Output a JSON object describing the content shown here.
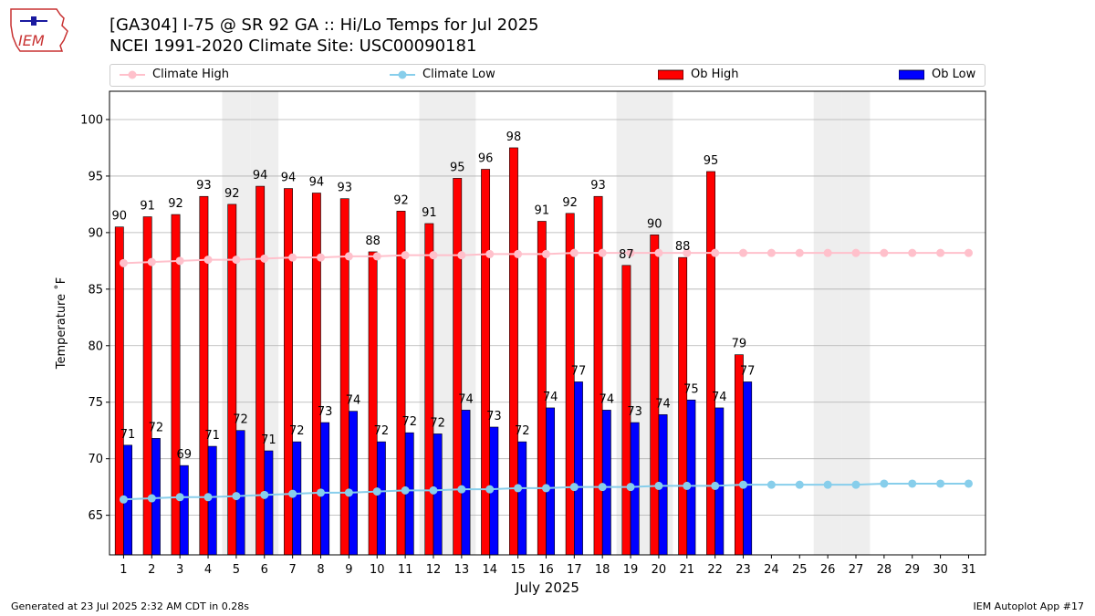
{
  "header": {
    "title_line1": "[GA304] I-75 @ SR 92  GA :: Hi/Lo Temps for Jul 2025",
    "title_line2": "NCEI 1991-2020 Climate Site: USC00090181",
    "logo_text": "IEM"
  },
  "legend": {
    "climate_high": "Climate High",
    "climate_low": "Climate Low",
    "ob_high": "Ob High",
    "ob_low": "Ob Low"
  },
  "footer": {
    "generated": "Generated at 23 Jul 2025 2:32 AM CDT in 0.28s",
    "app": "IEM Autoplot App #17"
  },
  "colors": {
    "ob_high": "#ff0000",
    "ob_low": "#0000ff",
    "climate_high": "#ffc0cb",
    "climate_low": "#87ceeb",
    "weekend": "#eeeeee",
    "grid": "#b0b0b0"
  },
  "chart_data": {
    "type": "bar",
    "xlabel": "July 2025",
    "ylabel": "Temperature ˚F",
    "ylim": [
      61.5,
      102.5
    ],
    "yticks": [
      65,
      70,
      75,
      80,
      85,
      90,
      95,
      100
    ],
    "grid": "horizontal",
    "legend_position": "top",
    "weekend_days": [
      5,
      6,
      12,
      13,
      19,
      20,
      26,
      27
    ],
    "days": [
      1,
      2,
      3,
      4,
      5,
      6,
      7,
      8,
      9,
      10,
      11,
      12,
      13,
      14,
      15,
      16,
      17,
      18,
      19,
      20,
      21,
      22,
      23,
      24,
      25,
      26,
      27,
      28,
      29,
      30,
      31
    ],
    "series": [
      {
        "name": "Ob High",
        "kind": "bar",
        "values": [
          90.5,
          91.4,
          91.6,
          93.2,
          92.5,
          94.1,
          93.9,
          93.5,
          93.0,
          88.3,
          91.9,
          90.8,
          94.8,
          95.6,
          97.5,
          91.0,
          91.7,
          93.2,
          87.1,
          89.8,
          87.8,
          95.4,
          79.2
        ],
        "labels": [
          "90",
          "91",
          "92",
          "93",
          "92",
          "94",
          "94",
          "94",
          "93",
          "88",
          "92",
          "91",
          "95",
          "96",
          "98",
          "91",
          "92",
          "93",
          "87",
          "90",
          "88",
          "95",
          "79"
        ]
      },
      {
        "name": "Ob Low",
        "kind": "bar",
        "values": [
          71.2,
          71.8,
          69.4,
          71.1,
          72.5,
          70.7,
          71.5,
          73.2,
          74.2,
          71.5,
          72.3,
          72.2,
          74.3,
          72.8,
          71.5,
          74.5,
          76.8,
          74.3,
          73.2,
          73.9,
          75.2,
          74.5,
          76.8
        ],
        "labels": [
          "71",
          "72",
          "69",
          "71",
          "72",
          "71",
          "72",
          "73",
          "74",
          "72",
          "72",
          "72",
          "74",
          "73",
          "72",
          "74",
          "77",
          "74",
          "73",
          "74",
          "75",
          "74",
          "77"
        ]
      },
      {
        "name": "Climate High",
        "kind": "line",
        "values": [
          87.3,
          87.4,
          87.5,
          87.6,
          87.6,
          87.7,
          87.8,
          87.8,
          87.9,
          87.9,
          88.0,
          88.0,
          88.0,
          88.1,
          88.1,
          88.1,
          88.2,
          88.2,
          88.2,
          88.2,
          88.2,
          88.2,
          88.2,
          88.2,
          88.2,
          88.2,
          88.2,
          88.2,
          88.2,
          88.2,
          88.2
        ]
      },
      {
        "name": "Climate Low",
        "kind": "line",
        "values": [
          66.4,
          66.5,
          66.6,
          66.6,
          66.7,
          66.8,
          66.9,
          67.0,
          67.0,
          67.1,
          67.2,
          67.2,
          67.3,
          67.3,
          67.4,
          67.4,
          67.5,
          67.5,
          67.5,
          67.6,
          67.6,
          67.6,
          67.7,
          67.7,
          67.7,
          67.7,
          67.7,
          67.8,
          67.8,
          67.8,
          67.8
        ]
      }
    ]
  }
}
